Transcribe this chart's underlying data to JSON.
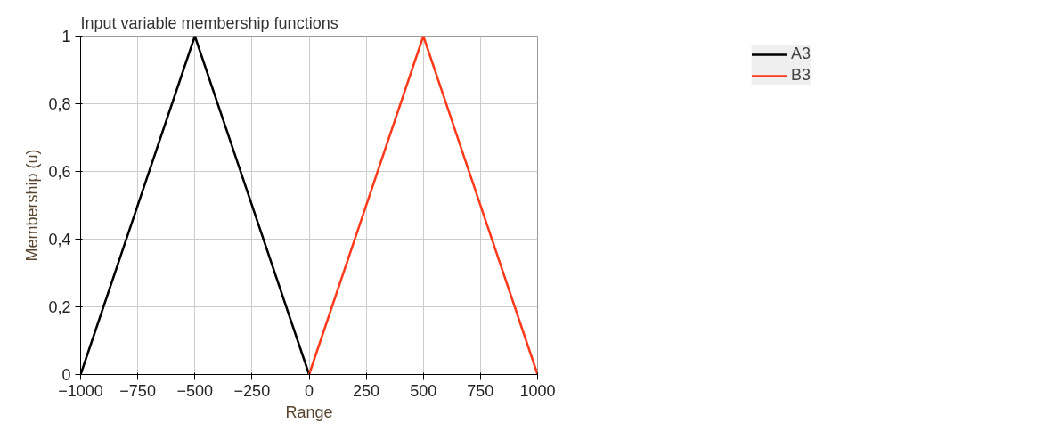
{
  "chart_data": {
    "type": "line",
    "title": "Input variable membership functions",
    "xlabel": "Range",
    "ylabel": "Membership (u)",
    "xlim": [
      -1000,
      1000
    ],
    "xticks": [
      -1000,
      -750,
      -500,
      -250,
      0,
      250,
      500,
      750,
      1000
    ],
    "ylim": [
      0,
      1
    ],
    "yticks": [
      0,
      {
        "value": 0.2,
        "label": "0,2"
      },
      {
        "value": 0.4,
        "label": "0,4"
      },
      {
        "value": 0.6,
        "label": "0,6"
      },
      {
        "value": 0.8,
        "label": "0,8"
      },
      1
    ],
    "grid": true,
    "legend": "top right",
    "marker": "none",
    "line_style": "solid",
    "series": [
      {
        "name": "A3",
        "color": "#000000",
        "x": [
          -1000,
          -500,
          0
        ],
        "values": [
          0,
          1,
          0
        ]
      },
      {
        "name": "B3",
        "color": "#ff3a1a",
        "x": [
          0,
          500,
          1000
        ],
        "values": [
          0,
          1,
          0
        ]
      }
    ]
  }
}
